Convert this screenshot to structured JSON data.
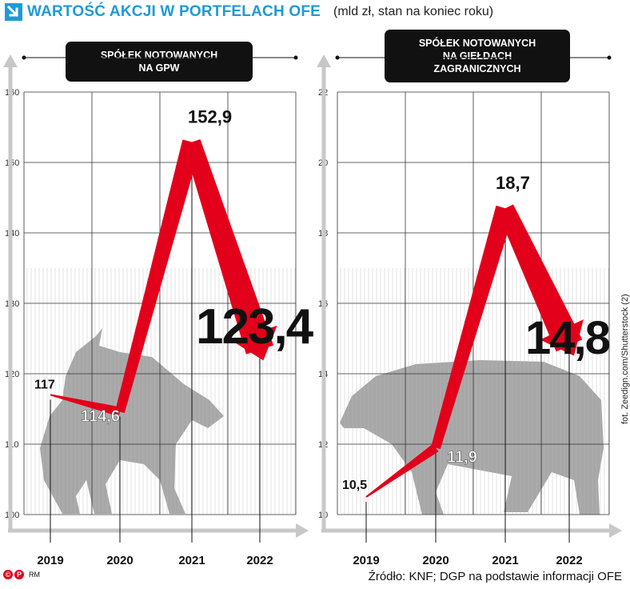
{
  "header": {
    "title": "WARTOŚĆ AKCJI W PORTFELACH OFE",
    "subtitle": "(mld zł, stan na koniec roku)"
  },
  "footer": {
    "source": "Źródło: KNF; DGP na podstawie informacji OFE",
    "logo_text": "RM",
    "photo_credit": "fot. Zeedign.com/Shutterstock (2)"
  },
  "colors": {
    "accent": "#1e9ad6",
    "line": "#e3001b",
    "label": "#111111",
    "grid": "#333333"
  },
  "chart_data": [
    {
      "type": "line",
      "title": "SPÓŁEK NOTOWANYCH NA GPW",
      "title_lines": [
        "SPÓŁEK NOTOWANYCH",
        "NA GPW"
      ],
      "categories": [
        "2019",
        "2020",
        "2021",
        "2022"
      ],
      "values": [
        117,
        114.6,
        152.9,
        123.4
      ],
      "value_labels": [
        "117",
        "114,6",
        "152,9",
        "123,4"
      ],
      "yticks": [
        "100",
        "110",
        "120",
        "130",
        "140",
        "150",
        "160"
      ],
      "ylim": [
        100,
        160
      ],
      "grid": true,
      "background_icon": "bull-icon"
    },
    {
      "type": "line",
      "title": "SPÓŁEK NOTOWANYCH NA GIEŁDACH ZAGRANICZNYCH",
      "title_lines": [
        "SPÓŁEK NOTOWANYCH",
        "NA GIEŁDACH",
        "ZAGRANICZNYCH"
      ],
      "categories": [
        "2019",
        "2020",
        "2021",
        "2022"
      ],
      "values": [
        10.5,
        11.9,
        18.7,
        14.8
      ],
      "value_labels": [
        "10,5",
        "11,9",
        "18,7",
        "14,8"
      ],
      "yticks": [
        "10",
        "12",
        "14",
        "16",
        "18",
        "20",
        "22"
      ],
      "ylim": [
        10,
        22
      ],
      "grid": true,
      "background_icon": "bear-icon"
    }
  ]
}
